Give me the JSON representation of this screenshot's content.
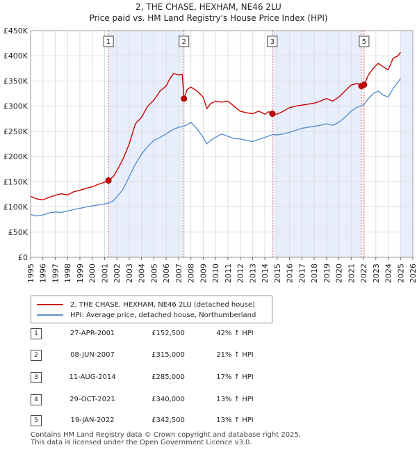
{
  "chart_data": {
    "type": "line",
    "title": "2, THE CHASE, HEXHAM, NE46 2LU",
    "subtitle": "Price paid vs. HM Land Registry's House Price Index (HPI)",
    "xlim": [
      1995,
      2026
    ],
    "ylim": [
      0,
      450000
    ],
    "x_ticks": [
      "1995",
      "1996",
      "1997",
      "1998",
      "1999",
      "2000",
      "2001",
      "2002",
      "2003",
      "2004",
      "2005",
      "2006",
      "2007",
      "2008",
      "2009",
      "2010",
      "2011",
      "2012",
      "2013",
      "2014",
      "2015",
      "2016",
      "2017",
      "2018",
      "2019",
      "2020",
      "2021",
      "2022",
      "2023",
      "2024",
      "2025",
      "2026"
    ],
    "y_ticks": [
      {
        "value": 0,
        "label": "£0"
      },
      {
        "value": 50000,
        "label": "£50K"
      },
      {
        "value": 100000,
        "label": "£100K"
      },
      {
        "value": 150000,
        "label": "£150K"
      },
      {
        "value": 200000,
        "label": "£200K"
      },
      {
        "value": 250000,
        "label": "£250K"
      },
      {
        "value": 300000,
        "label": "£300K"
      },
      {
        "value": 350000,
        "label": "£350K"
      },
      {
        "value": 400000,
        "label": "£400K"
      },
      {
        "value": 450000,
        "label": "£450K"
      }
    ],
    "shaded_ranges": [
      [
        2001.32,
        2007.44
      ],
      [
        2014.61,
        2021.83
      ],
      [
        2025.0,
        2026.0
      ]
    ],
    "series": [
      {
        "name": "2, THE CHASE, HEXHAM, NE46 2LU (detached house)",
        "color": "#cc0000",
        "points": [
          [
            1995.0,
            121000
          ],
          [
            1995.5,
            116000
          ],
          [
            1996.0,
            114000
          ],
          [
            1996.5,
            119000
          ],
          [
            1997.0,
            123000
          ],
          [
            1997.5,
            126000
          ],
          [
            1998.0,
            124000
          ],
          [
            1998.5,
            130000
          ],
          [
            1999.0,
            133000
          ],
          [
            1999.5,
            137000
          ],
          [
            2000.0,
            140000
          ],
          [
            2000.5,
            145000
          ],
          [
            2001.0,
            149000
          ],
          [
            2001.32,
            152500
          ],
          [
            2001.7,
            160000
          ],
          [
            2002.0,
            172000
          ],
          [
            2002.5,
            195000
          ],
          [
            2003.0,
            225000
          ],
          [
            2003.5,
            265000
          ],
          [
            2004.0,
            278000
          ],
          [
            2004.5,
            300000
          ],
          [
            2005.0,
            312000
          ],
          [
            2005.5,
            330000
          ],
          [
            2006.0,
            340000
          ],
          [
            2006.3,
            355000
          ],
          [
            2006.6,
            365000
          ],
          [
            2007.0,
            362000
          ],
          [
            2007.3,
            363000
          ],
          [
            2007.44,
            315000
          ],
          [
            2007.7,
            333000
          ],
          [
            2008.0,
            338000
          ],
          [
            2008.5,
            330000
          ],
          [
            2009.0,
            318000
          ],
          [
            2009.3,
            295000
          ],
          [
            2009.6,
            305000
          ],
          [
            2010.0,
            310000
          ],
          [
            2010.5,
            308000
          ],
          [
            2011.0,
            310000
          ],
          [
            2011.5,
            300000
          ],
          [
            2012.0,
            290000
          ],
          [
            2012.5,
            287000
          ],
          [
            2013.0,
            285000
          ],
          [
            2013.5,
            290000
          ],
          [
            2014.0,
            284000
          ],
          [
            2014.3,
            289000
          ],
          [
            2014.61,
            285000
          ],
          [
            2015.0,
            284000
          ],
          [
            2015.5,
            290000
          ],
          [
            2016.0,
            297000
          ],
          [
            2016.5,
            300000
          ],
          [
            2017.0,
            302000
          ],
          [
            2017.5,
            304000
          ],
          [
            2018.0,
            306000
          ],
          [
            2018.5,
            310000
          ],
          [
            2019.0,
            315000
          ],
          [
            2019.5,
            310000
          ],
          [
            2020.0,
            318000
          ],
          [
            2020.5,
            330000
          ],
          [
            2021.0,
            342000
          ],
          [
            2021.5,
            345000
          ],
          [
            2021.83,
            340000
          ],
          [
            2022.05,
            342500
          ],
          [
            2022.4,
            362000
          ],
          [
            2022.8,
            375000
          ],
          [
            2023.2,
            385000
          ],
          [
            2023.6,
            378000
          ],
          [
            2024.0,
            372000
          ],
          [
            2024.4,
            395000
          ],
          [
            2024.8,
            400000
          ],
          [
            2025.0,
            407000
          ]
        ]
      },
      {
        "name": "HPI: Average price, detached house, Northumberland",
        "color": "#5b8fd0",
        "points": [
          [
            1995.0,
            85000
          ],
          [
            1995.5,
            82000
          ],
          [
            1996.0,
            84000
          ],
          [
            1996.5,
            88000
          ],
          [
            1997.0,
            90000
          ],
          [
            1997.5,
            89000
          ],
          [
            1998.0,
            92000
          ],
          [
            1998.5,
            95000
          ],
          [
            1999.0,
            97000
          ],
          [
            1999.5,
            100000
          ],
          [
            2000.0,
            102000
          ],
          [
            2000.5,
            104000
          ],
          [
            2001.0,
            106000
          ],
          [
            2001.32,
            107500
          ],
          [
            2001.7,
            112000
          ],
          [
            2002.0,
            120000
          ],
          [
            2002.5,
            135000
          ],
          [
            2003.0,
            160000
          ],
          [
            2003.5,
            185000
          ],
          [
            2004.0,
            205000
          ],
          [
            2004.5,
            220000
          ],
          [
            2005.0,
            232000
          ],
          [
            2005.5,
            238000
          ],
          [
            2006.0,
            245000
          ],
          [
            2006.5,
            253000
          ],
          [
            2007.0,
            258000
          ],
          [
            2007.44,
            260500
          ],
          [
            2007.7,
            263000
          ],
          [
            2008.0,
            268000
          ],
          [
            2008.5,
            255000
          ],
          [
            2009.0,
            238000
          ],
          [
            2009.3,
            225000
          ],
          [
            2009.6,
            232000
          ],
          [
            2010.0,
            238000
          ],
          [
            2010.5,
            245000
          ],
          [
            2011.0,
            240000
          ],
          [
            2011.5,
            236000
          ],
          [
            2012.0,
            235000
          ],
          [
            2012.5,
            232000
          ],
          [
            2013.0,
            230000
          ],
          [
            2013.5,
            234000
          ],
          [
            2014.0,
            238000
          ],
          [
            2014.61,
            243600
          ],
          [
            2015.0,
            243000
          ],
          [
            2015.5,
            245000
          ],
          [
            2016.0,
            248000
          ],
          [
            2016.5,
            252000
          ],
          [
            2017.0,
            256000
          ],
          [
            2017.5,
            258000
          ],
          [
            2018.0,
            260000
          ],
          [
            2018.5,
            262000
          ],
          [
            2019.0,
            265000
          ],
          [
            2019.5,
            262000
          ],
          [
            2020.0,
            268000
          ],
          [
            2020.5,
            278000
          ],
          [
            2021.0,
            290000
          ],
          [
            2021.5,
            298000
          ],
          [
            2021.83,
            300900
          ],
          [
            2022.05,
            303100
          ],
          [
            2022.4,
            315000
          ],
          [
            2022.8,
            325000
          ],
          [
            2023.2,
            330000
          ],
          [
            2023.6,
            322000
          ],
          [
            2024.0,
            318000
          ],
          [
            2024.4,
            335000
          ],
          [
            2024.8,
            348000
          ],
          [
            2025.0,
            355000
          ]
        ]
      }
    ],
    "sales": [
      {
        "id": "1",
        "x": 2001.32,
        "y": 152500
      },
      {
        "id": "2",
        "x": 2007.44,
        "y": 315000
      },
      {
        "id": "3",
        "x": 2014.61,
        "y": 285000
      },
      {
        "id": "4",
        "x": 2021.83,
        "y": 340000
      },
      {
        "id": "5",
        "x": 2022.05,
        "y": 342500
      }
    ],
    "boxed_labels": [
      {
        "id": "1",
        "x": 2001.32
      },
      {
        "id": "2",
        "x": 2007.44
      },
      {
        "id": "3",
        "x": 2014.61
      },
      {
        "id": "5",
        "x": 2022.05
      }
    ]
  },
  "legend": {
    "property_label": "2, THE CHASE, HEXHAM, NE46 2LU (detached house)",
    "hpi_label": "HPI: Average price, detached house, Northumberland"
  },
  "transactions": [
    {
      "num": "1",
      "date": "27-APR-2001",
      "price": "£152,500",
      "hpi": "42% ↑ HPI"
    },
    {
      "num": "2",
      "date": "08-JUN-2007",
      "price": "£315,000",
      "hpi": "21% ↑ HPI"
    },
    {
      "num": "3",
      "date": "11-AUG-2014",
      "price": "£285,000",
      "hpi": "17% ↑ HPI"
    },
    {
      "num": "4",
      "date": "29-OCT-2021",
      "price": "£340,000",
      "hpi": "13% ↑ HPI"
    },
    {
      "num": "5",
      "date": "19-JAN-2022",
      "price": "£342,500",
      "hpi": "13% ↑ HPI"
    }
  ],
  "footer": {
    "line1": "Contains HM Land Registry data © Crown copyright and database right 2025.",
    "line2": "This data is licensed under the Open Government Licence v3.0."
  }
}
